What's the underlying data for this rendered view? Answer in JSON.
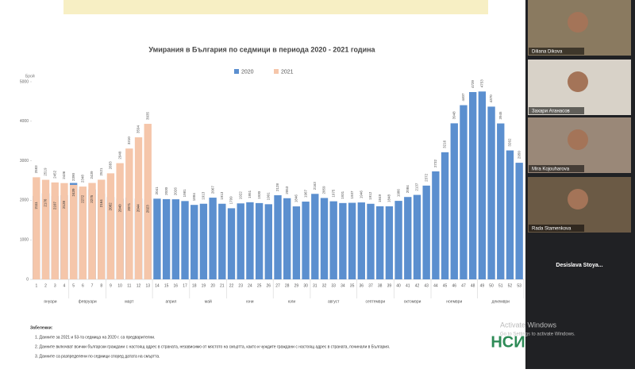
{
  "chart_data": {
    "type": "bar",
    "title": "Умирания в България по седмици в периода 2020 - 2021 година",
    "y_label": "Брой",
    "categories": [
      "1",
      "2",
      "3",
      "4",
      "5",
      "6",
      "7",
      "8",
      "9",
      "10",
      "11",
      "12",
      "13",
      "14",
      "15",
      "16",
      "17",
      "18",
      "19",
      "20",
      "21",
      "22",
      "23",
      "24",
      "25",
      "26",
      "27",
      "28",
      "29",
      "30",
      "31",
      "32",
      "33",
      "34",
      "35",
      "36",
      "37",
      "38",
      "39",
      "40",
      "41",
      "42",
      "43",
      "44",
      "45",
      "46",
      "47",
      "48",
      "49",
      "50",
      "51",
      "52",
      "53"
    ],
    "series": [
      {
        "name": "2020",
        "color": "#5b8fcf",
        "values": [
          2111,
          2176,
          2107,
          2128,
          2439,
          2272,
          2275,
          2164,
          2082,
          2040,
          2071,
          2044,
          2023,
          2041,
          2030,
          2026,
          1981,
          1884,
          1913,
          2067,
          1913,
          1799,
          1922,
          1951,
          1930,
          1901,
          2128,
          2053,
          1846,
          1967,
          2163,
          2059,
          1975,
          1931,
          1937,
          1946,
          1912,
          1849,
          1848,
          1986,
          2084,
          2137,
          2372,
          2732,
          3216,
          3948,
          4407,
          4739,
          4753,
          4370,
          3945,
          3262,
          2950
        ]
      },
      {
        "name": "2021",
        "color": "#f5c6aa",
        "values": [
          2583,
          2519,
          2452,
          2436,
          2390,
          2348,
          2439,
          2521,
          2683,
          2940,
          3310,
          3594,
          3935,
          null,
          null,
          null,
          null,
          null,
          null,
          null,
          null,
          null,
          null,
          null,
          null,
          null,
          null,
          null,
          null,
          null,
          null,
          null,
          null,
          null,
          null,
          null,
          null,
          null,
          null,
          null,
          null,
          null,
          null,
          null,
          null,
          null,
          null,
          null,
          null,
          null,
          null,
          null,
          null
        ]
      }
    ],
    "ylim": [
      0,
      5000
    ],
    "yticks": [
      0,
      1000,
      2000,
      3000,
      4000,
      5000
    ],
    "months": [
      {
        "name": "януари",
        "weeks": [
          1,
          4
        ]
      },
      {
        "name": "февруари",
        "weeks": [
          5,
          8
        ]
      },
      {
        "name": "март",
        "weeks": [
          9,
          13
        ]
      },
      {
        "name": "април",
        "weeks": [
          14,
          17
        ]
      },
      {
        "name": "май",
        "weeks": [
          18,
          21
        ]
      },
      {
        "name": "юни",
        "weeks": [
          22,
          26
        ]
      },
      {
        "name": "юли",
        "weeks": [
          27,
          30
        ]
      },
      {
        "name": "август",
        "weeks": [
          31,
          35
        ]
      },
      {
        "name": "септември",
        "weeks": [
          36,
          39
        ]
      },
      {
        "name": "октомври",
        "weeks": [
          40,
          43
        ]
      },
      {
        "name": "ноември",
        "weeks": [
          44,
          48
        ]
      },
      {
        "name": "декември",
        "weeks": [
          49,
          53
        ]
      }
    ]
  },
  "notes": {
    "heading": "Забележки:",
    "items": [
      "1. Данните за 2021 и 53-та седмица на 2020 г. са предварителни.",
      "2. Данните включват всички български граждани с настоящ адрес в страната, независимо от мястото на смъртта, както и чуждите граждани с настоящ адрес в страната, починали в България.",
      "3. Данните са разпределени по седмици според датата на смъртта."
    ]
  },
  "participants": [
    "Diliana Dikova",
    "Захари Атанасов",
    "Mira Kojouharova",
    "Rada Stamenkova",
    "Desislava  Stoya..."
  ],
  "watermark": {
    "title": "Activate Windows",
    "subtitle": "Go to Settings to activate Windows."
  },
  "logo": "НСИ"
}
